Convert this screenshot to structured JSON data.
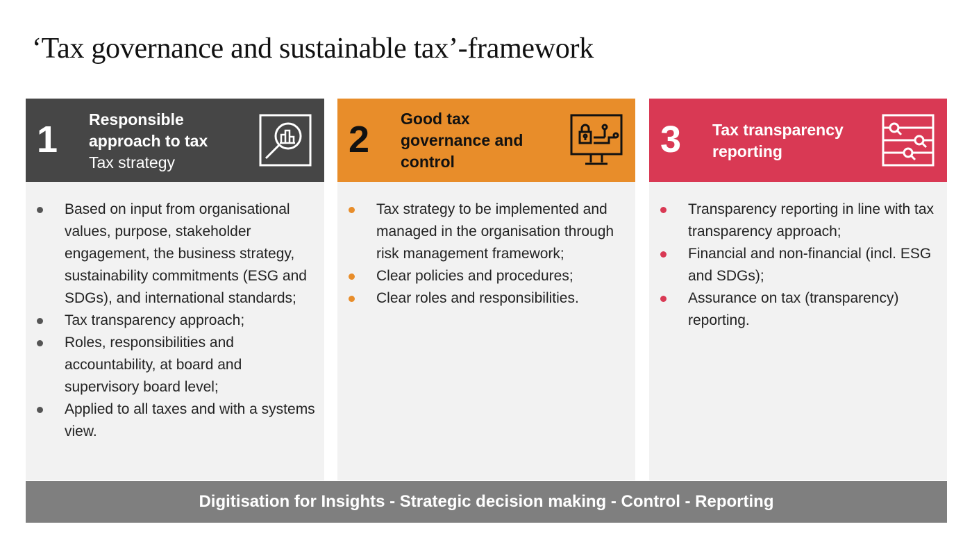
{
  "title": "‘Tax governance and sustainable tax’-framework",
  "colors": {
    "pillar1": "#464646",
    "pillar2": "#E88D2A",
    "pillar3": "#D93954",
    "body": "#F2F2F2",
    "footer": "#7F7F7F"
  },
  "pillars": [
    {
      "number": "1",
      "heading": "Responsible approach to tax",
      "subheading": "Tax strategy",
      "icon": "magnifier-bar-chart-icon",
      "bullets": [
        "Based on input from organisational values, purpose, stakeholder engagement, the business strategy, sustainability commitments (ESG and SDGs), and international standards;",
        "Tax transparency approach;",
        "Roles, responsibilities and accountability, at board and supervisory board level;",
        "Applied to all taxes and with a systems view."
      ]
    },
    {
      "number": "2",
      "heading": "Good tax governance and control",
      "icon": "monitor-lock-circuit-icon",
      "bullets": [
        "Tax strategy to be implemented and managed in the organisation through risk management framework;",
        "Clear policies and procedures;",
        "Clear roles and responsibilities."
      ]
    },
    {
      "number": "3",
      "heading": "Tax transparency reporting",
      "icon": "document-search-sliders-icon",
      "bullets": [
        "Transparency reporting in line with tax transparency approach;",
        "Financial and non-financial (incl. ESG and SDGs);",
        "Assurance on tax (transparency) reporting."
      ]
    }
  ],
  "footer": "Digitisation for Insights - Strategic decision making - Control - Reporting"
}
